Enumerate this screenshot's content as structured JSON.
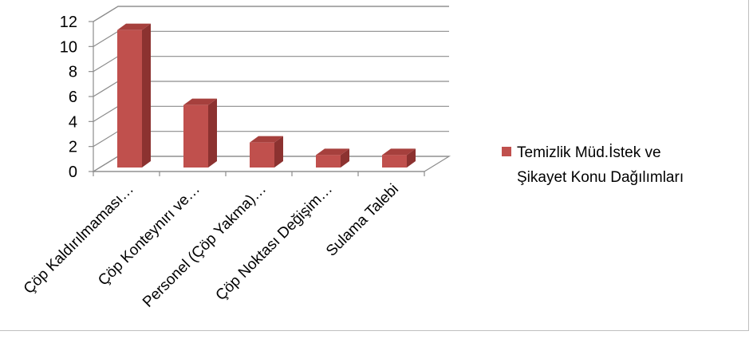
{
  "colors": {
    "bar_front": "#c0504d",
    "bar_side": "#8c3230",
    "bar_top": "#a6403d",
    "grid": "#8c8c8c",
    "legend_swatch": "#c0504d",
    "frame": "#bfbfbf"
  },
  "chart_data": {
    "type": "bar",
    "style": "3d-column",
    "title": "",
    "xlabel": "",
    "ylabel": "",
    "ylim": [
      0,
      12
    ],
    "yticks": [
      0,
      2,
      4,
      6,
      8,
      10,
      12
    ],
    "grid": true,
    "legend_position": "right",
    "categories": [
      "Çöp Kaldırılmaması…",
      "Çöp Konteynırı ve…",
      "Personel (Çöp Yakma)…",
      "Çöp Noktası Değişim…",
      "Sulama Talebi"
    ],
    "series": [
      {
        "name": "Temizlik Müd.İstek ve Şikayet Konu Dağılımları",
        "legend_lines": [
          "Temizlik Müd.İstek ve",
          "Şikayet Konu Dağılımları"
        ],
        "values": [
          11,
          5,
          2,
          1,
          1
        ]
      }
    ]
  }
}
